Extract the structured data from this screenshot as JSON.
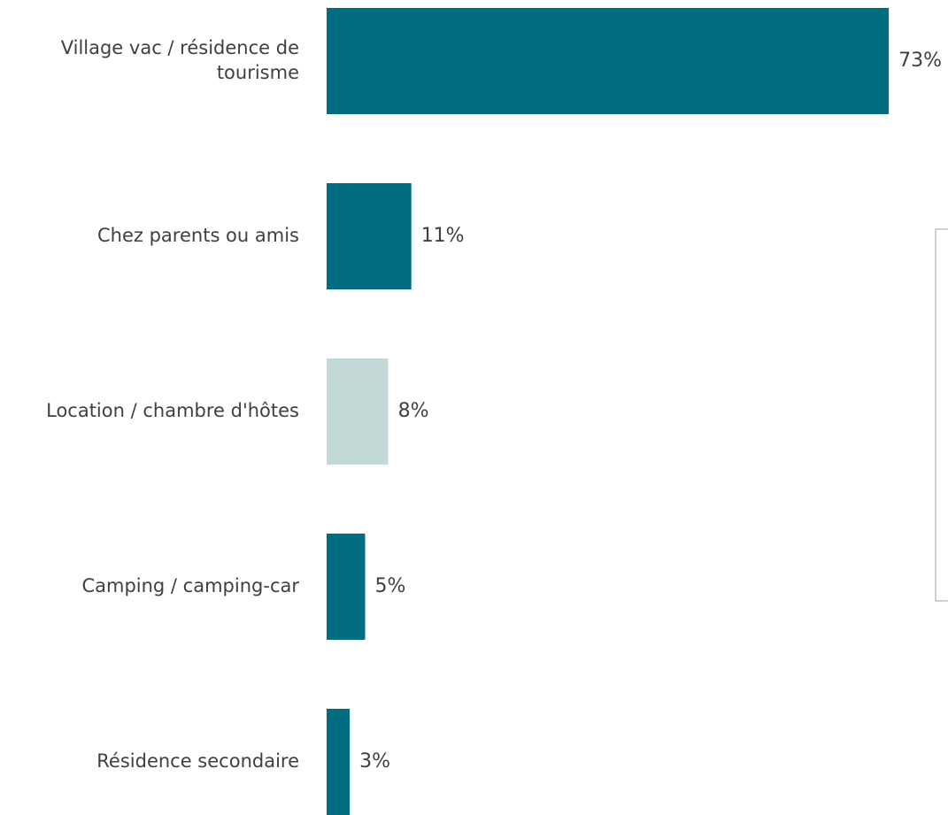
{
  "chart_data": {
    "type": "bar",
    "orientation": "horizontal",
    "title": "",
    "xlabel": "",
    "ylabel": "",
    "xlim": [
      0,
      100
    ],
    "grid": false,
    "legend": "none",
    "categories": [
      [
        "Village vac / résidence de",
        "tourisme"
      ],
      [
        "Chez parents ou amis"
      ],
      [
        "Location / chambre d'hôtes"
      ],
      [
        "Camping / camping-car"
      ],
      [
        "Résidence secondaire"
      ]
    ],
    "values": [
      73,
      11,
      8,
      5,
      3
    ],
    "value_labels": [
      "73%",
      "11%",
      "8%",
      "5%",
      "3%"
    ],
    "colors": [
      "#006d80",
      "#006d80",
      "#c2d9d8",
      "#006d80",
      "#006d80"
    ]
  }
}
